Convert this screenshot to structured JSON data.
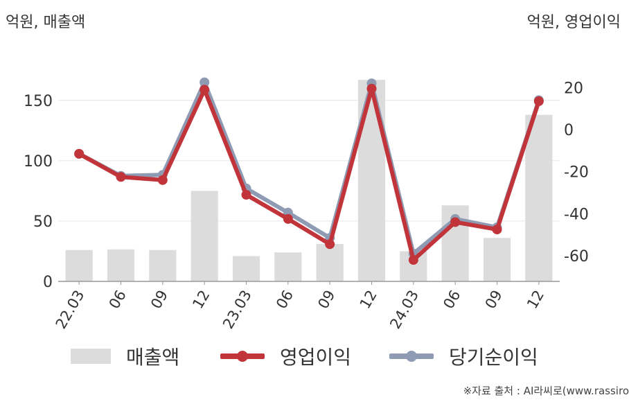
{
  "units": {
    "left": "억원, 매출액",
    "right": "억원, 영업이익"
  },
  "source": "※자료 출처 : AI라씨로(www.rassiro",
  "colors": {
    "bar": "#dcdcdc",
    "operating": "#c0343a",
    "net": "#8f9ab3",
    "axis": "#999999",
    "grid": "#e6e6e6"
  },
  "chart_data": {
    "type": "bar",
    "categories": [
      "22.03",
      "06",
      "09",
      "12",
      "23.03",
      "06",
      "09",
      "12",
      "24.03",
      "06",
      "09",
      "12"
    ],
    "left_axis": {
      "ticks": [
        0,
        50,
        100,
        150
      ],
      "ylim": [
        0,
        178
      ]
    },
    "right_axis": {
      "ticks": [
        -60,
        -40,
        -20,
        0,
        20
      ],
      "ylim": [
        -72.2,
        30
      ]
    },
    "grid": true,
    "legend_position": "bottom",
    "series": [
      {
        "name": "매출액",
        "axis": "left",
        "type": "bar",
        "values": [
          26,
          26.5,
          26,
          75,
          21,
          24,
          31,
          167,
          25,
          63,
          36,
          138
        ]
      },
      {
        "name": "영업이익",
        "axis": "right",
        "type": "line",
        "values": [
          -11.5,
          -22.5,
          -24,
          19,
          -31,
          -42.5,
          -54.5,
          19.5,
          -62,
          -44,
          -47.5,
          13.5
        ]
      },
      {
        "name": "당기순이익",
        "axis": "right",
        "type": "line",
        "values": [
          -11.5,
          -22,
          -21.5,
          22.5,
          -28,
          -39.5,
          -51.5,
          22,
          -59,
          -42.5,
          -46.5,
          14
        ]
      }
    ]
  }
}
